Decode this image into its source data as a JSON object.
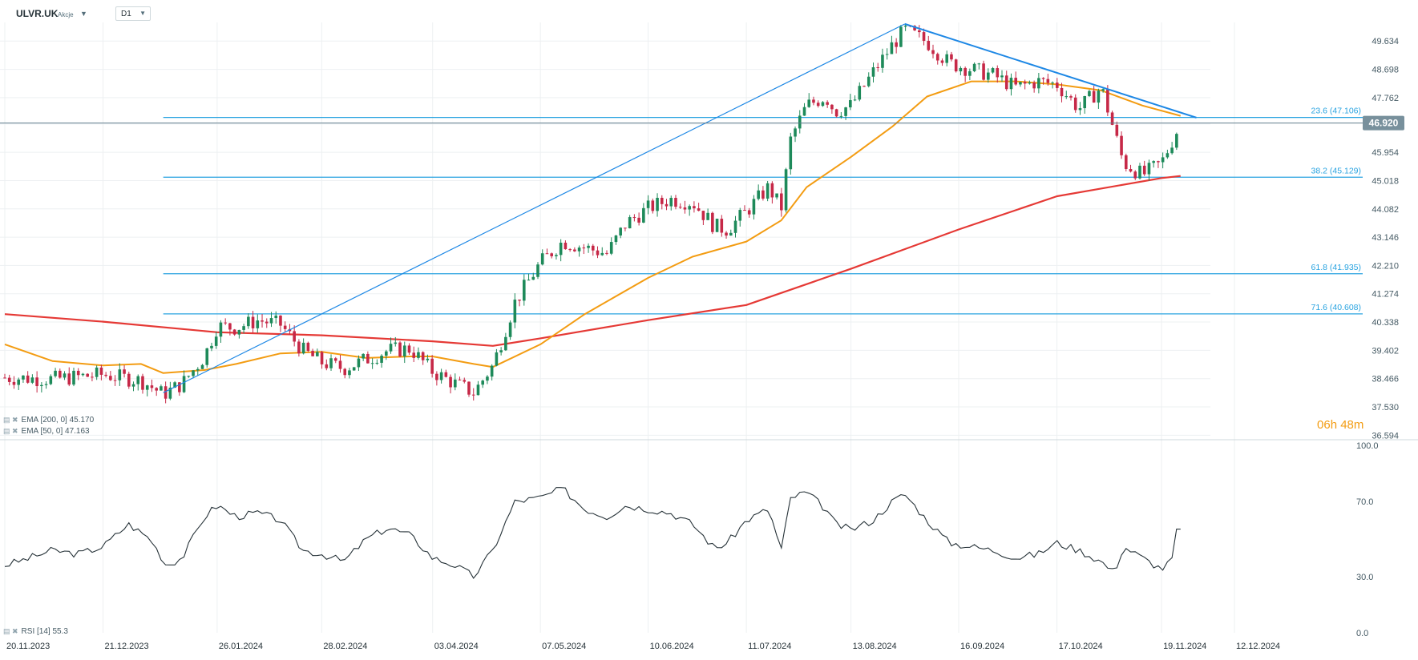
{
  "header": {
    "symbol": "ULVR.UK",
    "asset_type": "Akcje",
    "timeframe": "D1"
  },
  "indicators": {
    "ema200": {
      "label": "EMA [200, 0]",
      "value": "45.170",
      "color": "#e53935"
    },
    "ema50": {
      "label": "EMA [50, 0]",
      "value": "47.163",
      "color": "#f39c12"
    },
    "rsi": {
      "label": "RSI [14]",
      "value": "55.3",
      "color": "#263238"
    }
  },
  "countdown": {
    "hours": "06",
    "h_unit": "h",
    "minutes": "48",
    "m_unit": "m"
  },
  "colors": {
    "bull": "#1e8a5a",
    "bear": "#c62847",
    "fib": "#29a3e0",
    "trend": "#1e88e5",
    "price_tag": "#78909c",
    "grid": "#edf0f2"
  },
  "chart_data": {
    "type": "candlestick",
    "symbol": "ULVR.UK",
    "timeframe": "D1",
    "y_axis": {
      "ticks": [
        "49.634",
        "48.698",
        "47.762",
        "46.890",
        "45.954",
        "45.018",
        "44.082",
        "43.146",
        "42.210",
        "41.274",
        "40.338",
        "39.402",
        "38.466",
        "37.530",
        "36.594"
      ],
      "range": [
        36.55,
        50.25
      ]
    },
    "x_axis": {
      "ticks": [
        "20.11.2023",
        "21.12.2023",
        "26.01.2024",
        "28.02.2024",
        "03.04.2024",
        "07.05.2024",
        "10.06.2024",
        "11.07.2024",
        "13.08.2024",
        "16.09.2024",
        "17.10.2024",
        "19.11.2024",
        "12.12.2024"
      ]
    },
    "current_price": "46.920",
    "fibonacci": [
      {
        "level": "23.6",
        "price": 47.106,
        "label": "23.6 (47.106)"
      },
      {
        "level": "38.2",
        "price": 45.129,
        "label": "38.2 (45.129)"
      },
      {
        "level": "61.8",
        "price": 41.935,
        "label": "61.8 (41.935)"
      },
      {
        "level": "71.6",
        "price": 40.608,
        "label": "71.6 (40.608)"
      }
    ],
    "trendlines": [
      {
        "name": "fib-anchor",
        "from": {
          "date": "09.01.2024",
          "price": 38.0
        },
        "to": {
          "date": "30.08.2024",
          "price": 50.2
        }
      },
      {
        "name": "downtrend",
        "from": {
          "date": "30.08.2024",
          "price": 50.2
        },
        "to": {
          "date": "30.11.2024",
          "price": 47.1
        }
      }
    ],
    "price_series": [
      [
        "20.11.2023",
        38.5
      ],
      [
        "05.12.2023",
        38.45
      ],
      [
        "21.12.2023",
        38.6
      ],
      [
        "02.01.2024",
        38.4
      ],
      [
        "09.01.2024",
        37.95
      ],
      [
        "15.01.2024",
        38.3
      ],
      [
        "22.01.2024",
        39.2
      ],
      [
        "26.01.2024",
        40.2
      ],
      [
        "01.02.2024",
        40.15
      ],
      [
        "08.02.2024",
        40.4
      ],
      [
        "15.02.2024",
        40.25
      ],
      [
        "22.02.2024",
        39.4
      ],
      [
        "28.02.2024",
        39.0
      ],
      [
        "06.03.2024",
        38.8
      ],
      [
        "13.03.2024",
        39.1
      ],
      [
        "20.03.2024",
        39.4
      ],
      [
        "27.03.2024",
        39.45
      ],
      [
        "03.04.2024",
        38.7
      ],
      [
        "10.04.2024",
        38.3
      ],
      [
        "16.04.2024",
        38.0
      ],
      [
        "22.04.2024",
        38.9
      ],
      [
        "29.04.2024",
        41.0
      ],
      [
        "07.05.2024",
        42.3
      ],
      [
        "14.05.2024",
        43.0
      ],
      [
        "21.05.2024",
        42.8
      ],
      [
        "28.05.2024",
        42.6
      ],
      [
        "03.06.2024",
        43.6
      ],
      [
        "10.06.2024",
        44.1
      ],
      [
        "17.06.2024",
        44.4
      ],
      [
        "24.06.2024",
        44.3
      ],
      [
        "01.07.2024",
        43.5
      ],
      [
        "05.07.2024",
        43.4
      ],
      [
        "11.07.2024",
        44.0
      ],
      [
        "18.07.2024",
        44.8
      ],
      [
        "22.07.2024",
        44.1
      ],
      [
        "25.07.2024",
        46.4
      ],
      [
        "30.07.2024",
        47.5
      ],
      [
        "05.08.2024",
        47.8
      ],
      [
        "08.08.2024",
        47.3
      ],
      [
        "13.08.2024",
        47.5
      ],
      [
        "20.08.2024",
        48.6
      ],
      [
        "26.08.2024",
        49.5
      ],
      [
        "30.08.2024",
        50.0
      ],
      [
        "06.09.2024",
        49.6
      ],
      [
        "13.09.2024",
        48.9
      ],
      [
        "20.09.2024",
        48.7
      ],
      [
        "27.09.2024",
        48.5
      ],
      [
        "04.10.2024",
        48.1
      ],
      [
        "11.10.2024",
        48.3
      ],
      [
        "17.10.2024",
        48.2
      ],
      [
        "24.10.2024",
        47.4
      ],
      [
        "31.10.2024",
        48.1
      ],
      [
        "07.11.2024",
        45.6
      ],
      [
        "13.11.2024",
        45.2
      ],
      [
        "19.11.2024",
        45.6
      ],
      [
        "25.11.2024",
        46.92
      ]
    ],
    "ema50_series": [
      [
        "20.11.2023",
        39.6
      ],
      [
        "05.12.2023",
        39.05
      ],
      [
        "21.12.2023",
        38.9
      ],
      [
        "02.01.2024",
        38.95
      ],
      [
        "09.01.2024",
        38.65
      ],
      [
        "22.01.2024",
        38.75
      ],
      [
        "01.02.2024",
        38.95
      ],
      [
        "15.02.2024",
        39.3
      ],
      [
        "28.02.2024",
        39.35
      ],
      [
        "13.03.2024",
        39.15
      ],
      [
        "27.03.2024",
        39.2
      ],
      [
        "03.04.2024",
        39.2
      ],
      [
        "16.04.2024",
        38.95
      ],
      [
        "22.04.2024",
        38.85
      ],
      [
        "07.05.2024",
        39.6
      ],
      [
        "21.05.2024",
        40.6
      ],
      [
        "10.06.2024",
        41.8
      ],
      [
        "24.06.2024",
        42.5
      ],
      [
        "11.07.2024",
        43.0
      ],
      [
        "22.07.2024",
        43.7
      ],
      [
        "30.07.2024",
        44.8
      ],
      [
        "13.08.2024",
        45.8
      ],
      [
        "26.08.2024",
        46.8
      ],
      [
        "06.09.2024",
        47.8
      ],
      [
        "20.09.2024",
        48.3
      ],
      [
        "04.10.2024",
        48.3
      ],
      [
        "17.10.2024",
        48.2
      ],
      [
        "31.10.2024",
        48.0
      ],
      [
        "13.11.2024",
        47.5
      ],
      [
        "25.11.2024",
        47.16
      ]
    ],
    "ema200_series": [
      [
        "20.11.2023",
        40.6
      ],
      [
        "21.12.2023",
        40.35
      ],
      [
        "26.01.2024",
        40.0
      ],
      [
        "28.02.2024",
        39.9
      ],
      [
        "03.04.2024",
        39.7
      ],
      [
        "22.04.2024",
        39.55
      ],
      [
        "07.05.2024",
        39.8
      ],
      [
        "10.06.2024",
        40.4
      ],
      [
        "11.07.2024",
        40.9
      ],
      [
        "13.08.2024",
        42.1
      ],
      [
        "16.09.2024",
        43.4
      ],
      [
        "17.10.2024",
        44.5
      ],
      [
        "19.11.2024",
        45.1
      ],
      [
        "25.11.2024",
        45.17
      ]
    ],
    "rsi": {
      "label": "RSI [14]",
      "value": 55.3,
      "y_ticks": [
        "100.0",
        "70.0",
        "30.0",
        "0.0"
      ],
      "range": [
        0,
        100
      ],
      "series": [
        [
          "20.11.2023",
          36
        ],
        [
          "28.11.2023",
          40
        ],
        [
          "05.12.2023",
          44
        ],
        [
          "13.12.2023",
          42
        ],
        [
          "21.12.2023",
          46
        ],
        [
          "29.12.2023",
          58
        ],
        [
          "05.01.2024",
          50
        ],
        [
          "10.01.2024",
          36
        ],
        [
          "15.01.2024",
          40
        ],
        [
          "22.01.2024",
          62
        ],
        [
          "26.01.2024",
          68
        ],
        [
          "01.02.2024",
          62
        ],
        [
          "08.02.2024",
          64
        ],
        [
          "15.02.2024",
          60
        ],
        [
          "22.02.2024",
          44
        ],
        [
          "28.02.2024",
          42
        ],
        [
          "06.03.2024",
          38
        ],
        [
          "13.03.2024",
          50
        ],
        [
          "20.03.2024",
          56
        ],
        [
          "27.03.2024",
          52
        ],
        [
          "03.04.2024",
          40
        ],
        [
          "10.04.2024",
          36
        ],
        [
          "16.04.2024",
          30
        ],
        [
          "22.04.2024",
          44
        ],
        [
          "29.04.2024",
          70
        ],
        [
          "07.05.2024",
          72
        ],
        [
          "14.05.2024",
          77
        ],
        [
          "21.05.2024",
          66
        ],
        [
          "28.05.2024",
          62
        ],
        [
          "03.06.2024",
          68
        ],
        [
          "10.06.2024",
          66
        ],
        [
          "17.06.2024",
          64
        ],
        [
          "24.06.2024",
          58
        ],
        [
          "01.07.2024",
          45
        ],
        [
          "05.07.2024",
          48
        ],
        [
          "11.07.2024",
          60
        ],
        [
          "18.07.2024",
          66
        ],
        [
          "22.07.2024",
          44
        ],
        [
          "25.07.2024",
          72
        ],
        [
          "30.07.2024",
          75
        ],
        [
          "05.08.2024",
          66
        ],
        [
          "08.08.2024",
          58
        ],
        [
          "13.08.2024",
          55
        ],
        [
          "20.08.2024",
          60
        ],
        [
          "26.08.2024",
          70
        ],
        [
          "30.08.2024",
          74
        ],
        [
          "06.09.2024",
          60
        ],
        [
          "13.09.2024",
          48
        ],
        [
          "20.09.2024",
          46
        ],
        [
          "27.09.2024",
          44
        ],
        [
          "04.10.2024",
          40
        ],
        [
          "11.10.2024",
          42
        ],
        [
          "17.10.2024",
          48
        ],
        [
          "24.10.2024",
          44
        ],
        [
          "31.10.2024",
          38
        ],
        [
          "04.11.2024",
          32
        ],
        [
          "07.11.2024",
          46
        ],
        [
          "13.11.2024",
          40
        ],
        [
          "19.11.2024",
          34
        ],
        [
          "22.11.2024",
          38
        ],
        [
          "25.11.2024",
          55.3
        ]
      ]
    }
  }
}
